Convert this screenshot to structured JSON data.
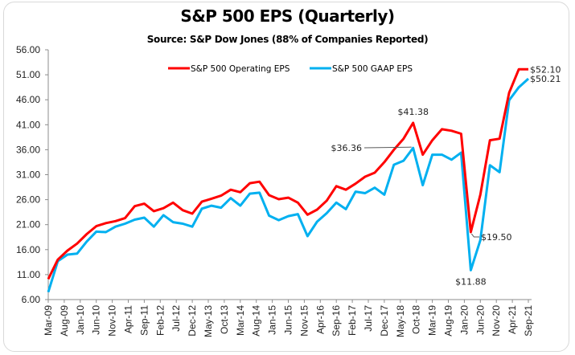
{
  "chart_data": {
    "type": "line",
    "title": "S&P 500 EPS (Quarterly)",
    "subtitle": "Source: S&P Dow Jones (88% of Companies Reported)",
    "xlabel": "",
    "ylabel": "",
    "ylim": [
      6,
      56
    ],
    "yticks": [
      "56.00",
      "51.00",
      "46.00",
      "41.00",
      "36.00",
      "31.00",
      "26.00",
      "21.00",
      "16.00",
      "11.00",
      "6.00"
    ],
    "ytick_values": [
      56,
      51,
      46,
      41,
      36,
      31,
      26,
      21,
      16,
      11,
      6
    ],
    "x": [
      "Mar-09",
      "Jun-09",
      "Sep-09",
      "Dec-09",
      "Mar-10",
      "Jun-10",
      "Sep-10",
      "Dec-10",
      "Mar-11",
      "Jun-11",
      "Sep-11",
      "Dec-11",
      "Mar-12",
      "Jun-12",
      "Sep-12",
      "Dec-12",
      "Mar-13",
      "Jun-13",
      "Sep-13",
      "Dec-13",
      "Mar-14",
      "Jun-14",
      "Sep-14",
      "Dec-14",
      "Mar-15",
      "Jun-15",
      "Sep-15",
      "Dec-15",
      "Mar-16",
      "Jun-16",
      "Sep-16",
      "Dec-16",
      "Mar-17",
      "Jun-17",
      "Sep-17",
      "Dec-17",
      "Mar-18",
      "Jun-18",
      "Sep-18",
      "Dec-18",
      "Mar-19",
      "Jun-19",
      "Sep-19",
      "Dec-19",
      "Mar-20",
      "Jun-20",
      "Sep-20",
      "Dec-20",
      "Mar-21",
      "Jun-21",
      "Sep-21"
    ],
    "xtick_labels": [
      "Mar-09",
      "Aug-09",
      "Jan-10",
      "Jun-10",
      "Nov-10",
      "Apr-11",
      "Sep-11",
      "Feb-12",
      "Jul-12",
      "Dec-12",
      "May-13",
      "Oct-13",
      "Mar-14",
      "Aug-14",
      "Jan-15",
      "Jun-15",
      "Nov-15",
      "Apr-16",
      "Sep-16",
      "Feb-17",
      "Jul-17",
      "Dec-17",
      "May-18",
      "Oct-18",
      "Mar-19",
      "Aug-19",
      "Jan-20",
      "Jun-20",
      "Nov-20",
      "Apr-21",
      "Sep-21"
    ],
    "series": [
      {
        "name": "S&P 500 Operating EPS",
        "color": "#ff0000",
        "values": [
          10.1,
          14.0,
          15.8,
          17.2,
          19.1,
          20.7,
          21.3,
          21.7,
          22.3,
          24.7,
          25.2,
          23.7,
          24.3,
          25.4,
          23.9,
          23.2,
          25.6,
          26.2,
          26.8,
          28.0,
          27.5,
          29.3,
          29.6,
          26.9,
          26.1,
          26.4,
          25.4,
          23.0,
          24.0,
          25.8,
          28.7,
          28.0,
          29.2,
          30.6,
          31.4,
          33.5,
          36.0,
          38.2,
          41.38,
          35.0,
          37.9,
          40.1,
          39.8,
          39.2,
          19.5,
          27.0,
          37.9,
          38.2,
          47.4,
          52.1,
          52.1
        ]
      },
      {
        "name": "S&P 500 GAAP EPS",
        "color": "#00b0f0",
        "values": [
          7.5,
          13.7,
          15.0,
          15.2,
          17.6,
          19.6,
          19.5,
          20.6,
          21.2,
          22.0,
          22.4,
          20.6,
          22.9,
          21.5,
          21.2,
          20.6,
          24.2,
          24.8,
          24.4,
          26.3,
          24.8,
          27.2,
          27.4,
          22.8,
          21.9,
          22.7,
          23.1,
          18.7,
          21.6,
          23.3,
          25.4,
          24.1,
          27.6,
          27.3,
          28.4,
          27.0,
          33.0,
          33.8,
          36.36,
          28.9,
          35.0,
          35.0,
          34.0,
          35.4,
          11.88,
          17.9,
          32.9,
          31.5,
          45.9,
          48.5,
          50.21
        ]
      }
    ],
    "annotations": [
      {
        "text": "$41.38",
        "series": 0,
        "index": 38
      },
      {
        "text": "$36.36",
        "series": 1,
        "index": 38
      },
      {
        "text": "$19.50",
        "series": 0,
        "index": 44
      },
      {
        "text": "$11.88",
        "series": 1,
        "index": 44
      },
      {
        "text": "$52.10",
        "series": 0,
        "index": 50
      },
      {
        "text": "$50.21",
        "series": 1,
        "index": 50
      }
    ],
    "legend": "top-center",
    "grid": false
  }
}
